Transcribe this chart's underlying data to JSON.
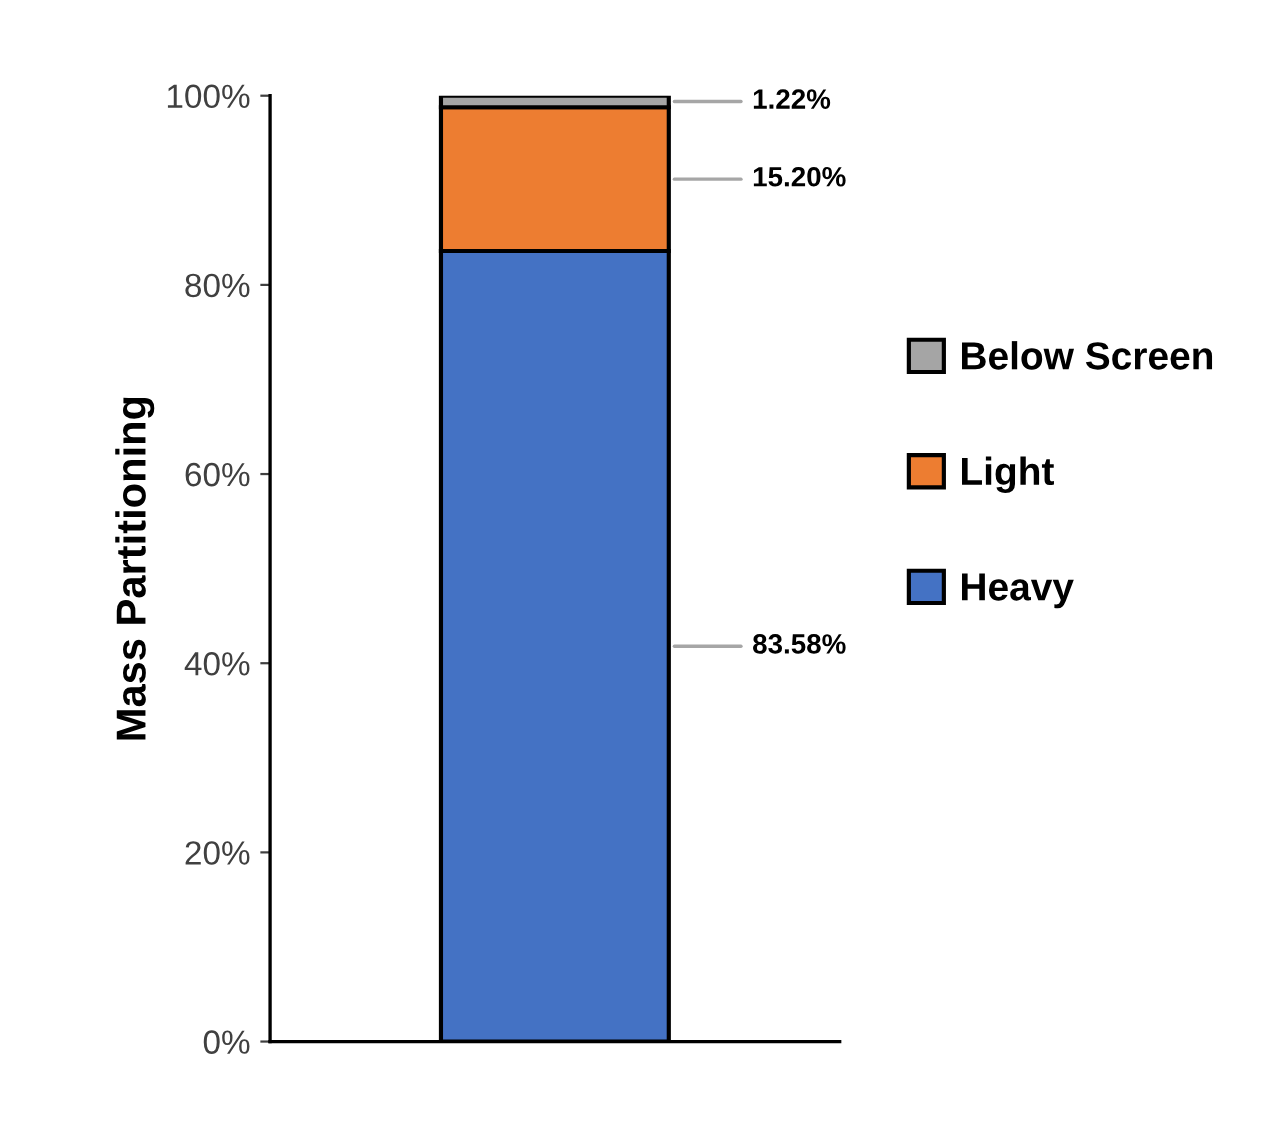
{
  "chart_data": {
    "type": "bar",
    "stacked": true,
    "categories": [
      null
    ],
    "ylabel": "Mass Partitioning",
    "series": [
      {
        "name": "Heavy",
        "color": "#4472c4",
        "values": [
          83.58
        ],
        "value_labels": [
          "83.58%"
        ]
      },
      {
        "name": "Light",
        "color": "#ed7d31",
        "values": [
          15.2
        ],
        "value_labels": [
          "15.20%"
        ]
      },
      {
        "name": "Below Screen",
        "color": "#a5a5a5",
        "values": [
          1.22
        ],
        "value_labels": [
          "1.22%"
        ]
      }
    ],
    "ylim": [
      0,
      100
    ],
    "yticks": [
      {
        "value": 0,
        "label": "0%"
      },
      {
        "value": 20,
        "label": "20%"
      },
      {
        "value": 40,
        "label": "40%"
      },
      {
        "value": 60,
        "label": "60%"
      },
      {
        "value": 80,
        "label": "80%"
      },
      {
        "value": 100,
        "label": "100%"
      }
    ],
    "grid": false,
    "legend": "right"
  }
}
